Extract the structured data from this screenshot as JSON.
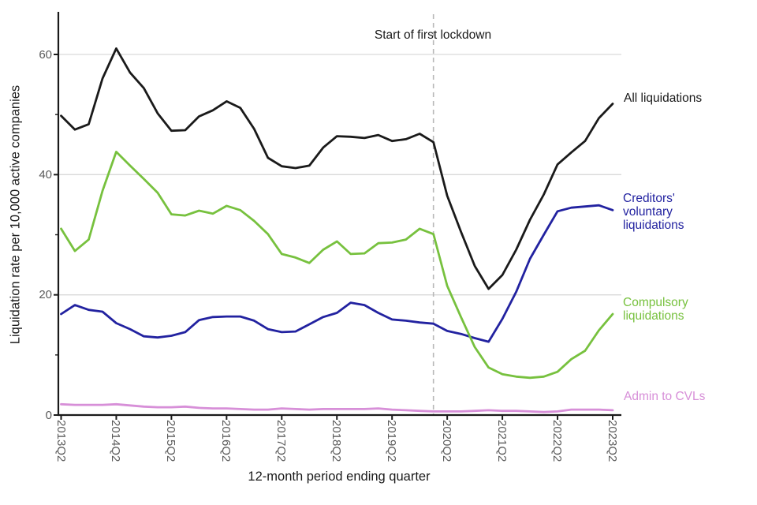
{
  "chart_data": {
    "type": "line",
    "ylabel": "Liquidation rate per 10,000 active companies",
    "xlabel": "12-month period ending quarter",
    "annotation": {
      "text": "Start of first lockdown",
      "x_category": "2020Q1"
    },
    "y_ticks": [
      0,
      20,
      40,
      60
    ],
    "y_minor_ticks": [
      10,
      30,
      50
    ],
    "ylim": [
      0,
      65
    ],
    "grid": "horizontal",
    "legend_position": "right-edge-labels",
    "grid_color": "#d9d9d9",
    "dashed_line_color": "#b8b8b8",
    "axis_color": "#1a1a1a",
    "tick_label_color": "#5a5a5a",
    "x_tick_labels": [
      "2013Q2",
      "2014Q2",
      "2015Q2",
      "2016Q2",
      "2017Q2",
      "2018Q2",
      "2019Q2",
      "2020Q2",
      "2021Q2",
      "2022Q2",
      "2023Q2"
    ],
    "categories": [
      "2013Q2",
      "2013Q3",
      "2013Q4",
      "2014Q1",
      "2014Q2",
      "2014Q3",
      "2014Q4",
      "2015Q1",
      "2015Q2",
      "2015Q3",
      "2015Q4",
      "2016Q1",
      "2016Q2",
      "2016Q3",
      "2016Q4",
      "2017Q1",
      "2017Q2",
      "2017Q3",
      "2017Q4",
      "2018Q1",
      "2018Q2",
      "2018Q3",
      "2018Q4",
      "2019Q1",
      "2019Q2",
      "2019Q3",
      "2019Q4",
      "2020Q1",
      "2020Q2",
      "2020Q3",
      "2020Q4",
      "2021Q1",
      "2021Q2",
      "2021Q3",
      "2021Q4",
      "2022Q1",
      "2022Q2",
      "2022Q3",
      "2022Q4",
      "2023Q1",
      "2023Q2"
    ],
    "series": [
      {
        "name": "All liquidations",
        "label": "All liquidations",
        "color": "#1a1a1a",
        "values": [
          49.8,
          47.5,
          48.4,
          56.0,
          61.0,
          57.0,
          54.4,
          50.2,
          47.3,
          47.4,
          49.7,
          50.7,
          52.2,
          51.1,
          47.6,
          42.8,
          41.4,
          41.1,
          41.5,
          44.5,
          46.4,
          46.3,
          46.1,
          46.6,
          45.6,
          45.9,
          46.8,
          45.4,
          36.5,
          30.5,
          24.8,
          21.0,
          23.3,
          27.5,
          32.5,
          36.7,
          41.7,
          43.7,
          45.6,
          49.4,
          51.8
        ]
      },
      {
        "name": "Creditors' voluntary liquidations",
        "label": "Creditors'\nvoluntary\nliquidations",
        "color": "#2222a0",
        "values": [
          16.8,
          18.3,
          17.5,
          17.2,
          15.3,
          14.3,
          13.1,
          12.9,
          13.2,
          13.8,
          15.8,
          16.3,
          16.4,
          16.4,
          15.7,
          14.3,
          13.8,
          13.9,
          15.1,
          16.3,
          17.0,
          18.7,
          18.3,
          17.0,
          15.9,
          15.7,
          15.4,
          15.2,
          14.0,
          13.5,
          12.8,
          12.2,
          16.0,
          20.5,
          26.0,
          30.0,
          33.9,
          34.5,
          34.7,
          34.9,
          34.1
        ]
      },
      {
        "name": "Compulsory liquidations",
        "label": "Compulsory\nliquidations",
        "color": "#77c13e",
        "values": [
          31.0,
          27.3,
          29.2,
          37.3,
          43.8,
          41.5,
          39.3,
          37.0,
          33.4,
          33.2,
          34.0,
          33.5,
          34.8,
          34.1,
          32.3,
          30.1,
          26.8,
          26.2,
          25.3,
          27.5,
          28.9,
          26.8,
          26.9,
          28.6,
          28.7,
          29.2,
          31.0,
          30.1,
          21.5,
          16.3,
          11.3,
          7.9,
          6.8,
          6.4,
          6.2,
          6.4,
          7.2,
          9.3,
          10.7,
          14.1,
          16.8
        ]
      },
      {
        "name": "Admin to CVLs",
        "label": "Admin to CVLs",
        "color": "#d78fd8",
        "values": [
          1.8,
          1.7,
          1.7,
          1.7,
          1.8,
          1.6,
          1.4,
          1.3,
          1.3,
          1.4,
          1.2,
          1.1,
          1.1,
          1.0,
          0.9,
          0.9,
          1.1,
          1.0,
          0.9,
          1.0,
          1.0,
          1.0,
          1.0,
          1.1,
          0.9,
          0.8,
          0.7,
          0.6,
          0.6,
          0.6,
          0.7,
          0.8,
          0.7,
          0.7,
          0.6,
          0.5,
          0.6,
          0.9,
          0.9,
          0.9,
          0.8
        ]
      }
    ]
  }
}
